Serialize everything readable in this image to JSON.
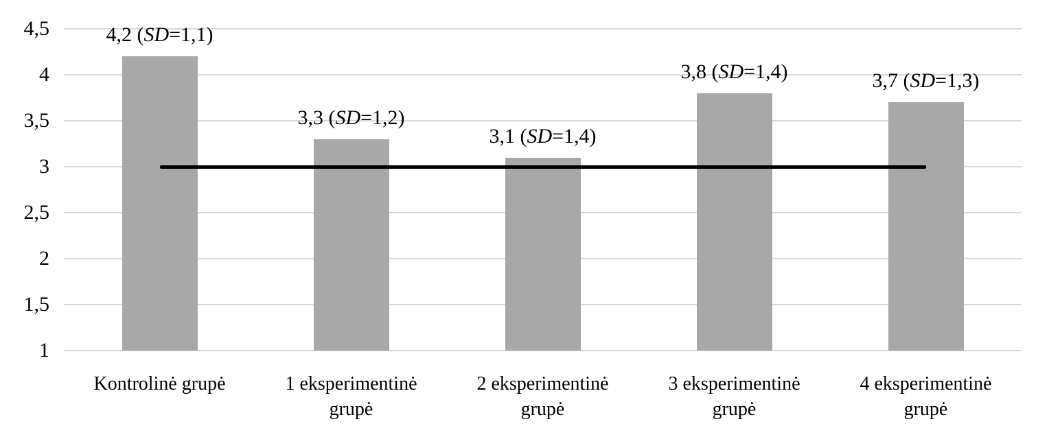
{
  "chart_data": {
    "type": "bar",
    "title": "",
    "xlabel": "",
    "ylabel": "",
    "legend": "none",
    "grid": true,
    "decimal_separator": ",",
    "categories": [
      "Kontrolinė grupė",
      "1 eksperimentinė grupė",
      "2 eksperimentinė grupė",
      "3 eksperimentinė grupė",
      "4 eksperimentinė grupė"
    ],
    "values": [
      4.2,
      3.3,
      3.1,
      3.8,
      3.7
    ],
    "sd_values": [
      1.1,
      1.2,
      1.4,
      1.4,
      1.3
    ],
    "sd_prefix": "SD",
    "data_labels": [
      {
        "value": "4,2",
        "sd": "1,1"
      },
      {
        "value": "3,3",
        "sd": "1,2"
      },
      {
        "value": "3,1",
        "sd": "1,4"
      },
      {
        "value": "3,8",
        "sd": "1,4"
      },
      {
        "value": "3,7",
        "sd": "1,3"
      }
    ],
    "y_axis": {
      "min": 1,
      "max": 4.5,
      "step": 0.5,
      "tick_labels_top_to_bottom": [
        "4,5",
        "4",
        "3,5",
        "3",
        "2,5",
        "2",
        "1,5",
        "1"
      ]
    },
    "ylim": [
      1,
      4.5
    ],
    "reference_line": {
      "value": 3,
      "spans": "from center of first bar to center of last bar",
      "color": "#000000"
    },
    "colors": {
      "bar": "#a8a8a8",
      "gridline": "#d9d9d9",
      "text": "#000000",
      "background": "#ffffff"
    }
  }
}
